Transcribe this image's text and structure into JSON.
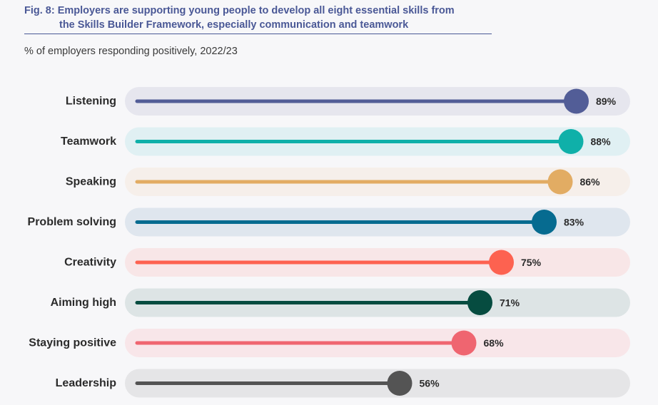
{
  "figure": {
    "title_line1": "Fig. 8: Employers are supporting young people to develop all eight essential skills from",
    "title_line2": "the Skills Builder Framework, especially communication and teamwork",
    "subtitle": "% of employers responding positively, 2022/23"
  },
  "chart_data": {
    "type": "bar",
    "title": "Fig. 8: Employers are supporting young people to develop all eight essential skills from the Skills Builder Framework, especially communication and teamwork",
    "subtitle": "% of employers responding positively, 2022/23",
    "xlabel": "",
    "ylabel": "",
    "xlim": [
      0,
      100
    ],
    "orientation": "horizontal",
    "grid": false,
    "categories": [
      "Listening",
      "Teamwork",
      "Speaking",
      "Problem solving",
      "Creativity",
      "Aiming high",
      "Staying positive",
      "Leadership"
    ],
    "values": [
      89,
      88,
      86,
      83,
      75,
      71,
      68,
      56
    ],
    "value_labels": [
      "89%",
      "88%",
      "86%",
      "83%",
      "75%",
      "71%",
      "68%",
      "56%"
    ],
    "colors": [
      "#525d97",
      "#0fb0a9",
      "#e2ac63",
      "#066b90",
      "#fd6250",
      "#064c40",
      "#ef6570",
      "#545454"
    ],
    "track_colors": [
      "#e6e6ee",
      "#e0f0f3",
      "#f6efea",
      "#dfe6ee",
      "#f8e6e7",
      "#dde4e5",
      "#f8e6e9",
      "#e5e5e7"
    ]
  }
}
